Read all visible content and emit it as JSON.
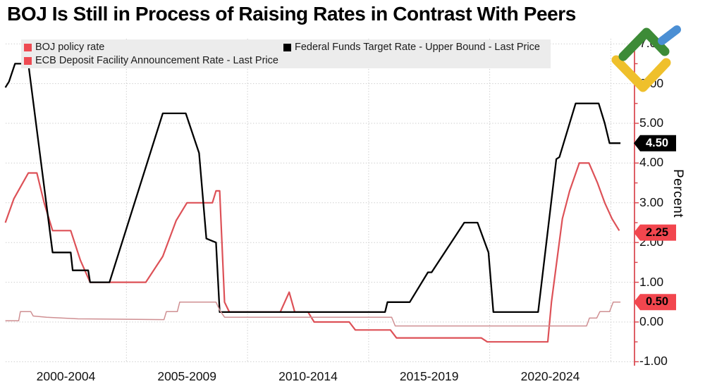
{
  "title": "BOJ Is Still in Process of Raising Rates in Contrast With Peers",
  "legend": {
    "items": [
      {
        "label": "BOJ policy rate",
        "color": "#ee4a52"
      },
      {
        "label": "Federal Funds Target Rate - Upper Bound - Last Price",
        "color": "#000000"
      },
      {
        "label": "ECB Deposit Facility Announcement Rate - Last Price",
        "color": "#ee4a52"
      }
    ]
  },
  "axis": {
    "y_title": "Percent",
    "y_ticks": [
      "7.00",
      "6.00",
      "5.00",
      "4.00",
      "3.00",
      "2.00",
      "1.00",
      "0.00",
      "-1.00"
    ],
    "y_tick_values": [
      7,
      6,
      5,
      4,
      3,
      2,
      1,
      0,
      -1
    ],
    "x_ticks": [
      "2000-2004",
      "2005-2009",
      "2010-2014",
      "2015-2019",
      "2020-2024"
    ],
    "flags": [
      {
        "label": "4.50",
        "value": 4.5,
        "bg": "#000000",
        "fg": "#ffffff"
      },
      {
        "label": "2.25",
        "value": 2.25,
        "bg": "#f2464e",
        "fg": "#000000"
      },
      {
        "label": "0.50",
        "value": 0.5,
        "bg": "#f2464e",
        "fg": "#000000"
      }
    ]
  },
  "colors": {
    "axis_red": "#d8434b",
    "grid": "#c9c9c9",
    "legend_bg": "#ececec",
    "logo_green": "#3d8b37",
    "logo_blue": "#4b8fd4",
    "logo_yellow": "#efc02c"
  },
  "chart_data": {
    "type": "line",
    "title": "BOJ Is Still in Process of Raising Rates in Contrast With Peers",
    "xlabel": "",
    "ylabel": "Percent",
    "x_unit": "year",
    "xlim": [
      2000,
      2026
    ],
    "ylim": [
      -1,
      7
    ],
    "grid": "dotted",
    "legend_position": "top",
    "x_categories": [
      "2000-2004",
      "2005-2009",
      "2010-2014",
      "2015-2019",
      "2020-2024"
    ],
    "series": [
      {
        "id": "ecb-deposit-rate",
        "name": "ECB Deposit Facility Announcement Rate - Last Price",
        "color": "#dd5157",
        "width": 2.2,
        "last_price": 2.25,
        "points": [
          [
            2000.0,
            2.5
          ],
          [
            2000.35,
            3.1
          ],
          [
            2000.95,
            3.75
          ],
          [
            2001.3,
            3.75
          ],
          [
            2001.6,
            3.0
          ],
          [
            2001.95,
            2.3
          ],
          [
            2002.7,
            2.3
          ],
          [
            2003.1,
            1.55
          ],
          [
            2003.5,
            1.0
          ],
          [
            2005.8,
            1.0
          ],
          [
            2006.5,
            1.65
          ],
          [
            2007.05,
            2.55
          ],
          [
            2007.5,
            3.0
          ],
          [
            2008.55,
            3.0
          ],
          [
            2008.7,
            3.3
          ],
          [
            2008.85,
            3.3
          ],
          [
            2009.05,
            0.5
          ],
          [
            2009.25,
            0.25
          ],
          [
            2011.35,
            0.25
          ],
          [
            2011.72,
            0.75
          ],
          [
            2011.95,
            0.25
          ],
          [
            2012.5,
            0.25
          ],
          [
            2012.75,
            0.0
          ],
          [
            2014.2,
            0.0
          ],
          [
            2014.45,
            -0.2
          ],
          [
            2015.9,
            -0.2
          ],
          [
            2016.15,
            -0.4
          ],
          [
            2019.65,
            -0.4
          ],
          [
            2019.9,
            -0.5
          ],
          [
            2022.4,
            -0.5
          ],
          [
            2022.55,
            0.5
          ],
          [
            2023.0,
            2.6
          ],
          [
            2023.3,
            3.3
          ],
          [
            2023.7,
            4.0
          ],
          [
            2024.1,
            4.0
          ],
          [
            2024.45,
            3.5
          ],
          [
            2024.75,
            3.0
          ],
          [
            2025.05,
            2.6
          ],
          [
            2025.35,
            2.3
          ]
        ]
      },
      {
        "id": "fed-funds-upper",
        "name": "Federal Funds Target Rate - Upper Bound - Last Price",
        "color": "#000000",
        "width": 2.3,
        "last_price": 4.5,
        "points": [
          [
            2000.0,
            5.9
          ],
          [
            2000.15,
            6.05
          ],
          [
            2000.4,
            6.5
          ],
          [
            2000.95,
            6.5
          ],
          [
            2001.95,
            1.75
          ],
          [
            2002.7,
            1.75
          ],
          [
            2002.78,
            1.3
          ],
          [
            2003.42,
            1.3
          ],
          [
            2003.5,
            1.0
          ],
          [
            2004.3,
            1.0
          ],
          [
            2006.5,
            5.25
          ],
          [
            2007.45,
            5.25
          ],
          [
            2008.0,
            4.25
          ],
          [
            2008.3,
            2.1
          ],
          [
            2008.7,
            2.0
          ],
          [
            2008.85,
            0.25
          ],
          [
            2015.68,
            0.25
          ],
          [
            2015.78,
            0.5
          ],
          [
            2016.7,
            0.5
          ],
          [
            2017.45,
            1.25
          ],
          [
            2017.6,
            1.25
          ],
          [
            2018.95,
            2.5
          ],
          [
            2019.5,
            2.5
          ],
          [
            2019.95,
            1.75
          ],
          [
            2020.15,
            0.25
          ],
          [
            2022.0,
            0.25
          ],
          [
            2022.75,
            4.1
          ],
          [
            2022.88,
            4.15
          ],
          [
            2023.55,
            5.5
          ],
          [
            2024.5,
            5.5
          ],
          [
            2024.75,
            5.0
          ],
          [
            2024.95,
            4.5
          ],
          [
            2025.4,
            4.5
          ]
        ]
      },
      {
        "id": "boj-policy-rate",
        "name": "BOJ policy rate",
        "color": "#cf8f92",
        "width": 1.5,
        "last_price": 0.5,
        "points": [
          [
            2000.0,
            0.03
          ],
          [
            2000.55,
            0.03
          ],
          [
            2000.62,
            0.26
          ],
          [
            2001.05,
            0.26
          ],
          [
            2001.15,
            0.15
          ],
          [
            2001.7,
            0.12
          ],
          [
            2003.0,
            0.08
          ],
          [
            2006.55,
            0.06
          ],
          [
            2006.65,
            0.26
          ],
          [
            2007.1,
            0.26
          ],
          [
            2007.2,
            0.5
          ],
          [
            2008.7,
            0.5
          ],
          [
            2008.85,
            0.3
          ],
          [
            2009.05,
            0.12
          ],
          [
            2015.95,
            0.12
          ],
          [
            2016.1,
            -0.1
          ],
          [
            2024.0,
            -0.1
          ],
          [
            2024.12,
            0.1
          ],
          [
            2024.42,
            0.1
          ],
          [
            2024.55,
            0.26
          ],
          [
            2024.95,
            0.26
          ],
          [
            2025.1,
            0.5
          ],
          [
            2025.4,
            0.5
          ]
        ]
      }
    ]
  }
}
